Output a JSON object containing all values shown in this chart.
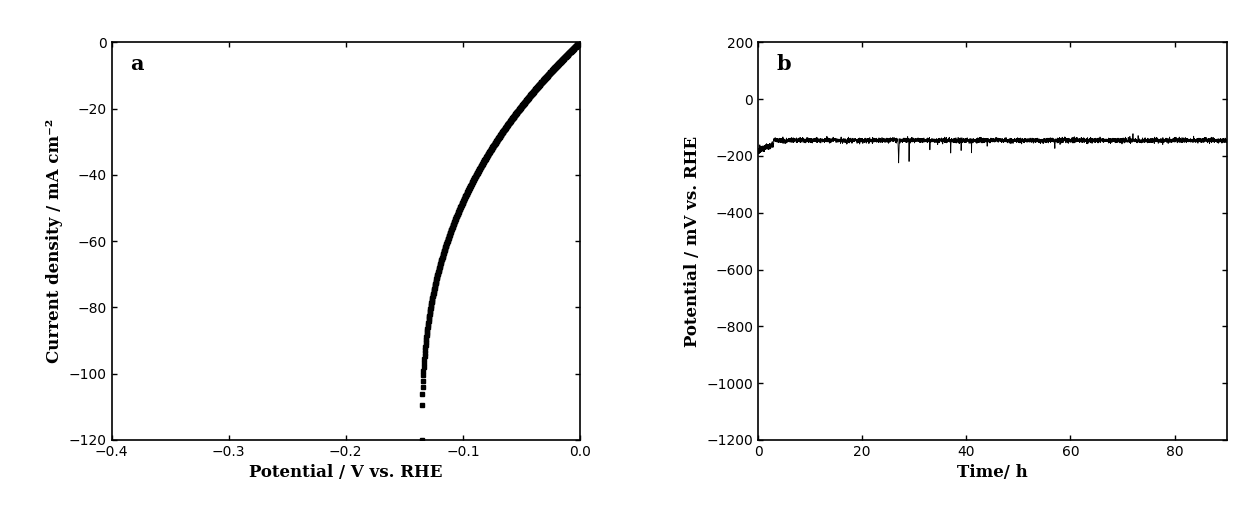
{
  "panel_a": {
    "xlabel": "Potential / V vs. RHE",
    "ylabel": "Current density / mA cm⁻²",
    "xlim": [
      -0.4,
      0.0
    ],
    "ylim": [
      -120,
      0
    ],
    "xticks": [
      -0.4,
      -0.3,
      -0.2,
      -0.1,
      0.0
    ],
    "yticks": [
      0,
      -20,
      -40,
      -60,
      -80,
      -100,
      -120
    ],
    "label": "a",
    "curve_color": "#000000"
  },
  "panel_b": {
    "xlabel": "Time/ h",
    "ylabel": "Potential / mV vs. RHE",
    "xlim": [
      0,
      90
    ],
    "ylim": [
      -1200,
      200
    ],
    "xticks": [
      0,
      20,
      40,
      60,
      80
    ],
    "yticks": [
      200,
      0,
      -200,
      -400,
      -600,
      -800,
      -1000,
      -1200
    ],
    "label": "b",
    "baseline": -145,
    "noise_std": 4,
    "line_color": "#000000"
  },
  "figure": {
    "bgcolor": "#ffffff",
    "fontsize_label": 12,
    "fontsize_tick": 10,
    "fontsize_panel_label": 15
  }
}
